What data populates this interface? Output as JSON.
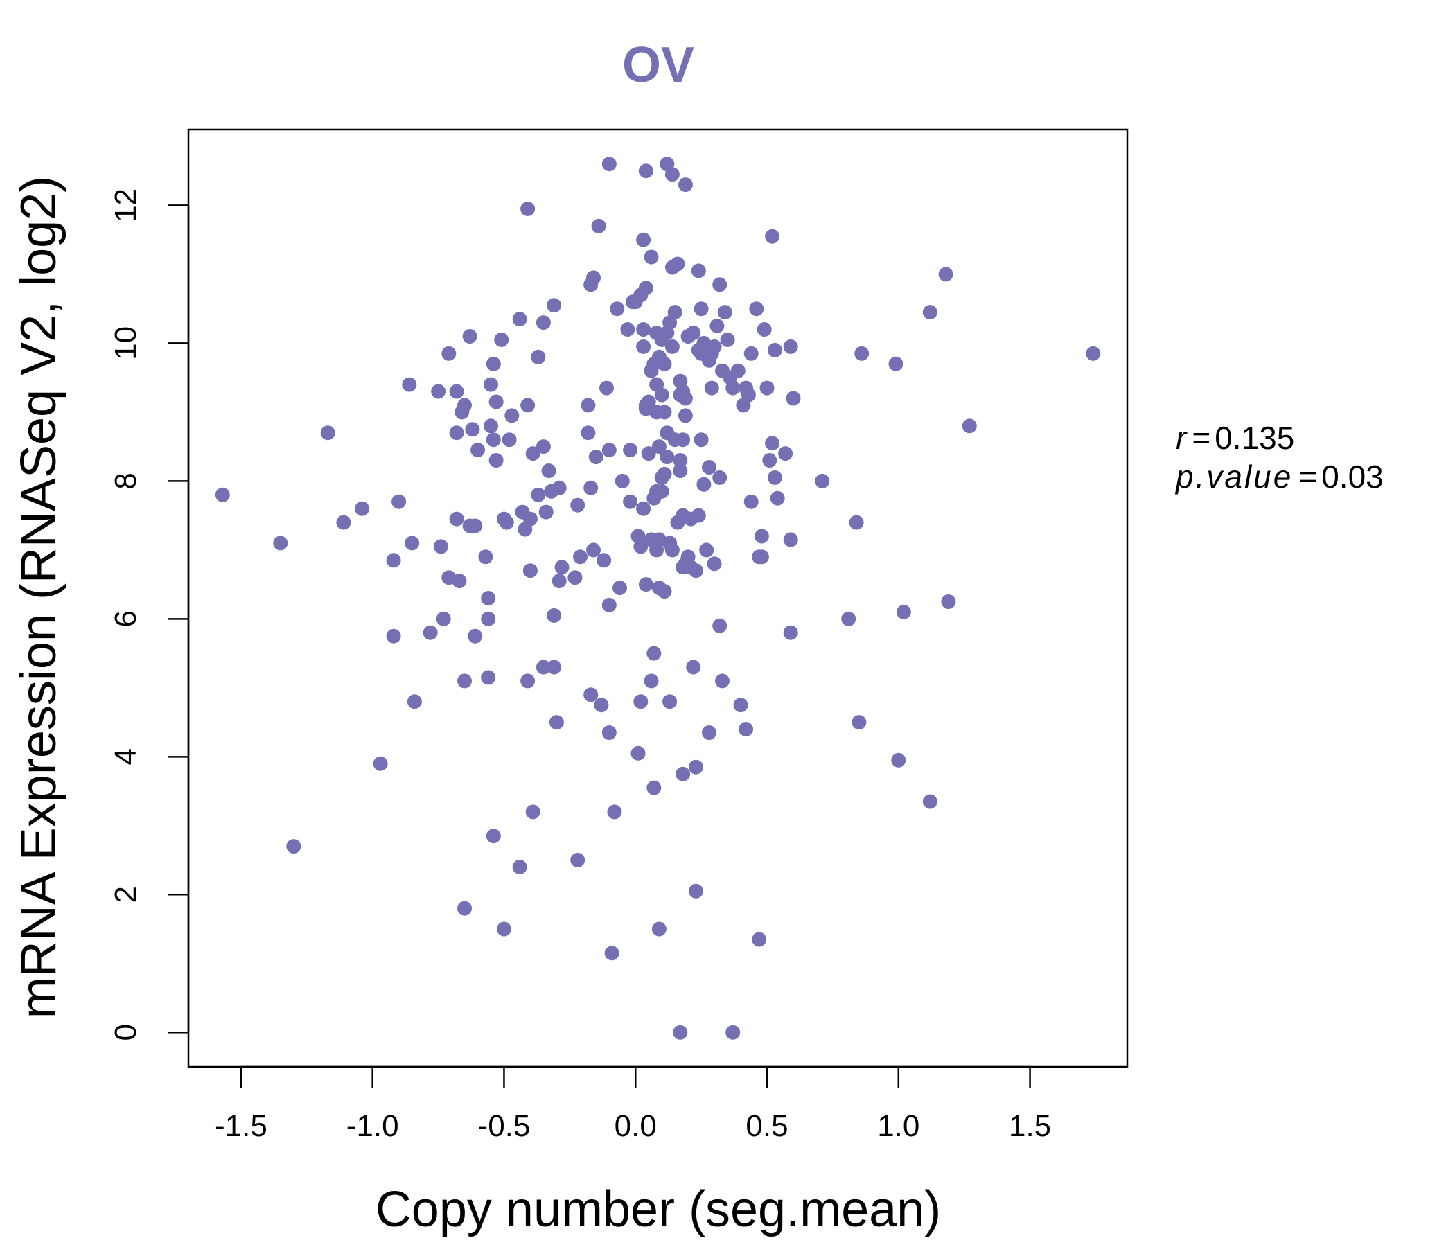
{
  "colors": {
    "point": "#7570b3",
    "title": "#7570b3",
    "axis": "#000000"
  },
  "chart_data": {
    "type": "scatter",
    "title": "OV",
    "xlabel": "Copy number (seg.mean)",
    "ylabel": "mRNA Expression (RNASeq V2, log2)",
    "xlim": [
      -1.7,
      1.87
    ],
    "ylim": [
      -0.5,
      13.1
    ],
    "x_ticks": [
      -1.5,
      -1.0,
      -0.5,
      0.0,
      0.5,
      1.0,
      1.5
    ],
    "x_tick_labels": [
      "-1.5",
      "-1.0",
      "-0.5",
      "0.0",
      "0.5",
      "1.0",
      "1.5"
    ],
    "y_ticks": [
      0,
      2,
      4,
      6,
      8,
      10,
      12
    ],
    "y_tick_labels": [
      "0",
      "2",
      "4",
      "6",
      "8",
      "10",
      "12"
    ],
    "grid": false,
    "stats": {
      "r_label": "r",
      "r_value": "0.135",
      "p_label": "p.value",
      "p_value": "0.03"
    },
    "points": [
      [
        -1.57,
        7.8
      ],
      [
        -1.35,
        7.1
      ],
      [
        -1.3,
        2.7
      ],
      [
        -1.17,
        8.7
      ],
      [
        -1.11,
        7.4
      ],
      [
        -1.04,
        7.6
      ],
      [
        -0.97,
        3.9
      ],
      [
        -0.92,
        5.75
      ],
      [
        -0.92,
        6.85
      ],
      [
        -0.9,
        7.7
      ],
      [
        -0.86,
        9.4
      ],
      [
        -0.85,
        7.1
      ],
      [
        -0.84,
        4.8
      ],
      [
        -0.78,
        5.8
      ],
      [
        -0.75,
        9.3
      ],
      [
        -0.74,
        7.05
      ],
      [
        -0.73,
        6.0
      ],
      [
        -0.71,
        9.85
      ],
      [
        -0.71,
        6.6
      ],
      [
        -0.68,
        9.3
      ],
      [
        -0.68,
        7.45
      ],
      [
        -0.68,
        8.7
      ],
      [
        -0.67,
        6.55
      ],
      [
        -0.66,
        9.0
      ],
      [
        -0.65,
        9.1
      ],
      [
        -0.65,
        1.8
      ],
      [
        -0.65,
        5.1
      ],
      [
        -0.63,
        10.1
      ],
      [
        -0.63,
        7.35
      ],
      [
        -0.62,
        8.75
      ],
      [
        -0.61,
        7.35
      ],
      [
        -0.61,
        5.75
      ],
      [
        -0.6,
        8.45
      ],
      [
        -0.57,
        6.9
      ],
      [
        -0.56,
        6.3
      ],
      [
        -0.56,
        6.0
      ],
      [
        -0.56,
        5.15
      ],
      [
        -0.55,
        9.4
      ],
      [
        -0.55,
        8.8
      ],
      [
        -0.54,
        9.7
      ],
      [
        -0.54,
        8.6
      ],
      [
        -0.54,
        2.85
      ],
      [
        -0.53,
        9.15
      ],
      [
        -0.53,
        8.3
      ],
      [
        -0.51,
        10.05
      ],
      [
        -0.5,
        7.45
      ],
      [
        -0.5,
        1.5
      ],
      [
        -0.49,
        7.4
      ],
      [
        -0.48,
        8.6
      ],
      [
        -0.47,
        8.95
      ],
      [
        -0.44,
        10.35
      ],
      [
        -0.44,
        2.4
      ],
      [
        -0.43,
        7.55
      ],
      [
        -0.42,
        7.3
      ],
      [
        -0.41,
        11.95
      ],
      [
        -0.41,
        9.1
      ],
      [
        -0.41,
        5.1
      ],
      [
        -0.4,
        7.45
      ],
      [
        -0.4,
        6.7
      ],
      [
        -0.39,
        8.4
      ],
      [
        -0.39,
        3.2
      ],
      [
        -0.37,
        9.8
      ],
      [
        -0.37,
        7.8
      ],
      [
        -0.35,
        10.3
      ],
      [
        -0.35,
        8.5
      ],
      [
        -0.35,
        5.3
      ],
      [
        -0.34,
        7.55
      ],
      [
        -0.33,
        8.15
      ],
      [
        -0.32,
        7.85
      ],
      [
        -0.31,
        10.55
      ],
      [
        -0.31,
        6.05
      ],
      [
        -0.31,
        5.3
      ],
      [
        -0.3,
        4.5
      ],
      [
        -0.29,
        7.9
      ],
      [
        -0.29,
        6.55
      ],
      [
        -0.28,
        6.75
      ],
      [
        -0.23,
        6.6
      ],
      [
        -0.22,
        7.65
      ],
      [
        -0.22,
        2.5
      ],
      [
        -0.21,
        6.9
      ],
      [
        -0.18,
        9.1
      ],
      [
        -0.18,
        8.7
      ],
      [
        -0.17,
        7.9
      ],
      [
        -0.17,
        10.85
      ],
      [
        -0.17,
        4.9
      ],
      [
        -0.16,
        10.95
      ],
      [
        -0.16,
        7.0
      ],
      [
        -0.15,
        8.35
      ],
      [
        -0.14,
        11.7
      ],
      [
        -0.13,
        4.75
      ],
      [
        -0.12,
        6.85
      ],
      [
        -0.11,
        9.35
      ],
      [
        -0.1,
        12.6
      ],
      [
        -0.1,
        8.45
      ],
      [
        -0.1,
        6.2
      ],
      [
        -0.1,
        4.35
      ],
      [
        -0.09,
        1.15
      ],
      [
        -0.08,
        3.2
      ],
      [
        -0.07,
        10.5
      ],
      [
        -0.06,
        6.45
      ],
      [
        -0.05,
        8.0
      ],
      [
        -0.03,
        10.2
      ],
      [
        -0.02,
        8.45
      ],
      [
        -0.02,
        7.7
      ],
      [
        -0.01,
        10.6
      ],
      [
        0.0,
        10.6
      ],
      [
        0.01,
        4.05
      ],
      [
        0.01,
        7.2
      ],
      [
        0.02,
        10.7
      ],
      [
        0.02,
        7.05
      ],
      [
        0.02,
        4.8
      ],
      [
        0.03,
        11.5
      ],
      [
        0.03,
        10.2
      ],
      [
        0.03,
        9.95
      ],
      [
        0.03,
        7.6
      ],
      [
        0.04,
        10.8
      ],
      [
        0.04,
        12.5
      ],
      [
        0.04,
        9.1
      ],
      [
        0.04,
        9.05
      ],
      [
        0.04,
        6.5
      ],
      [
        0.05,
        9.15
      ],
      [
        0.05,
        8.4
      ],
      [
        0.06,
        9.6
      ],
      [
        0.06,
        7.15
      ],
      [
        0.06,
        5.1
      ],
      [
        0.06,
        11.25
      ],
      [
        0.07,
        9.7
      ],
      [
        0.07,
        7.75
      ],
      [
        0.07,
        5.5
      ],
      [
        0.07,
        3.55
      ],
      [
        0.08,
        9.4
      ],
      [
        0.08,
        9.0
      ],
      [
        0.08,
        7.85
      ],
      [
        0.08,
        7.0
      ],
      [
        0.08,
        10.15
      ],
      [
        0.09,
        9.8
      ],
      [
        0.09,
        8.5
      ],
      [
        0.09,
        7.15
      ],
      [
        0.09,
        6.45
      ],
      [
        0.09,
        1.5
      ],
      [
        0.1,
        10.05
      ],
      [
        0.1,
        9.25
      ],
      [
        0.1,
        8.05
      ],
      [
        0.1,
        7.85
      ],
      [
        0.11,
        9.7
      ],
      [
        0.11,
        9.0
      ],
      [
        0.11,
        8.1
      ],
      [
        0.11,
        6.4
      ],
      [
        0.12,
        12.6
      ],
      [
        0.12,
        10.15
      ],
      [
        0.12,
        8.7
      ],
      [
        0.12,
        8.35
      ],
      [
        0.13,
        10.3
      ],
      [
        0.13,
        7.1
      ],
      [
        0.13,
        4.8
      ],
      [
        0.14,
        11.1
      ],
      [
        0.14,
        12.45
      ],
      [
        0.14,
        9.95
      ],
      [
        0.14,
        7.0
      ],
      [
        0.15,
        10.45
      ],
      [
        0.15,
        8.6
      ],
      [
        0.16,
        11.15
      ],
      [
        0.16,
        7.4
      ],
      [
        0.17,
        9.45
      ],
      [
        0.17,
        9.25
      ],
      [
        0.17,
        8.3
      ],
      [
        0.17,
        8.15
      ],
      [
        0.17,
        0.0
      ],
      [
        0.18,
        9.3
      ],
      [
        0.18,
        8.6
      ],
      [
        0.18,
        7.5
      ],
      [
        0.18,
        6.75
      ],
      [
        0.18,
        3.75
      ],
      [
        0.19,
        12.3
      ],
      [
        0.19,
        9.2
      ],
      [
        0.19,
        8.95
      ],
      [
        0.19,
        6.8
      ],
      [
        0.2,
        10.1
      ],
      [
        0.2,
        6.9
      ],
      [
        0.21,
        7.45
      ],
      [
        0.21,
        6.75
      ],
      [
        0.22,
        10.15
      ],
      [
        0.22,
        5.3
      ],
      [
        0.23,
        6.7
      ],
      [
        0.23,
        3.85
      ],
      [
        0.23,
        2.05
      ],
      [
        0.24,
        11.05
      ],
      [
        0.24,
        9.9
      ],
      [
        0.24,
        7.5
      ],
      [
        0.25,
        10.5
      ],
      [
        0.25,
        9.85
      ],
      [
        0.25,
        8.6
      ],
      [
        0.26,
        10.0
      ],
      [
        0.26,
        7.95
      ],
      [
        0.27,
        7.0
      ],
      [
        0.28,
        9.75
      ],
      [
        0.28,
        8.2
      ],
      [
        0.28,
        4.35
      ],
      [
        0.29,
        9.35
      ],
      [
        0.29,
        9.85
      ],
      [
        0.3,
        9.95
      ],
      [
        0.3,
        6.8
      ],
      [
        0.31,
        10.25
      ],
      [
        0.32,
        10.85
      ],
      [
        0.32,
        8.05
      ],
      [
        0.32,
        5.9
      ],
      [
        0.33,
        9.6
      ],
      [
        0.33,
        5.1
      ],
      [
        0.34,
        10.45
      ],
      [
        0.35,
        10.05
      ],
      [
        0.36,
        9.5
      ],
      [
        0.37,
        9.35
      ],
      [
        0.37,
        0.0
      ],
      [
        0.39,
        9.6
      ],
      [
        0.4,
        4.75
      ],
      [
        0.41,
        9.1
      ],
      [
        0.42,
        9.35
      ],
      [
        0.42,
        4.4
      ],
      [
        0.43,
        9.25
      ],
      [
        0.44,
        9.85
      ],
      [
        0.44,
        7.7
      ],
      [
        0.46,
        10.5
      ],
      [
        0.47,
        6.9
      ],
      [
        0.47,
        1.35
      ],
      [
        0.48,
        7.2
      ],
      [
        0.48,
        6.9
      ],
      [
        0.49,
        10.2
      ],
      [
        0.5,
        9.35
      ],
      [
        0.51,
        8.3
      ],
      [
        0.52,
        11.55
      ],
      [
        0.52,
        8.55
      ],
      [
        0.53,
        9.9
      ],
      [
        0.53,
        8.05
      ],
      [
        0.54,
        7.75
      ],
      [
        0.57,
        8.4
      ],
      [
        0.59,
        9.95
      ],
      [
        0.59,
        7.15
      ],
      [
        0.59,
        5.8
      ],
      [
        0.6,
        9.2
      ],
      [
        0.71,
        8.0
      ],
      [
        0.81,
        6.0
      ],
      [
        0.84,
        7.4
      ],
      [
        0.85,
        4.5
      ],
      [
        0.86,
        9.85
      ],
      [
        0.99,
        9.7
      ],
      [
        1.0,
        3.95
      ],
      [
        1.02,
        6.1
      ],
      [
        1.12,
        10.45
      ],
      [
        1.12,
        3.35
      ],
      [
        1.18,
        11.0
      ],
      [
        1.19,
        6.25
      ],
      [
        1.27,
        8.8
      ],
      [
        1.74,
        9.85
      ]
    ]
  }
}
